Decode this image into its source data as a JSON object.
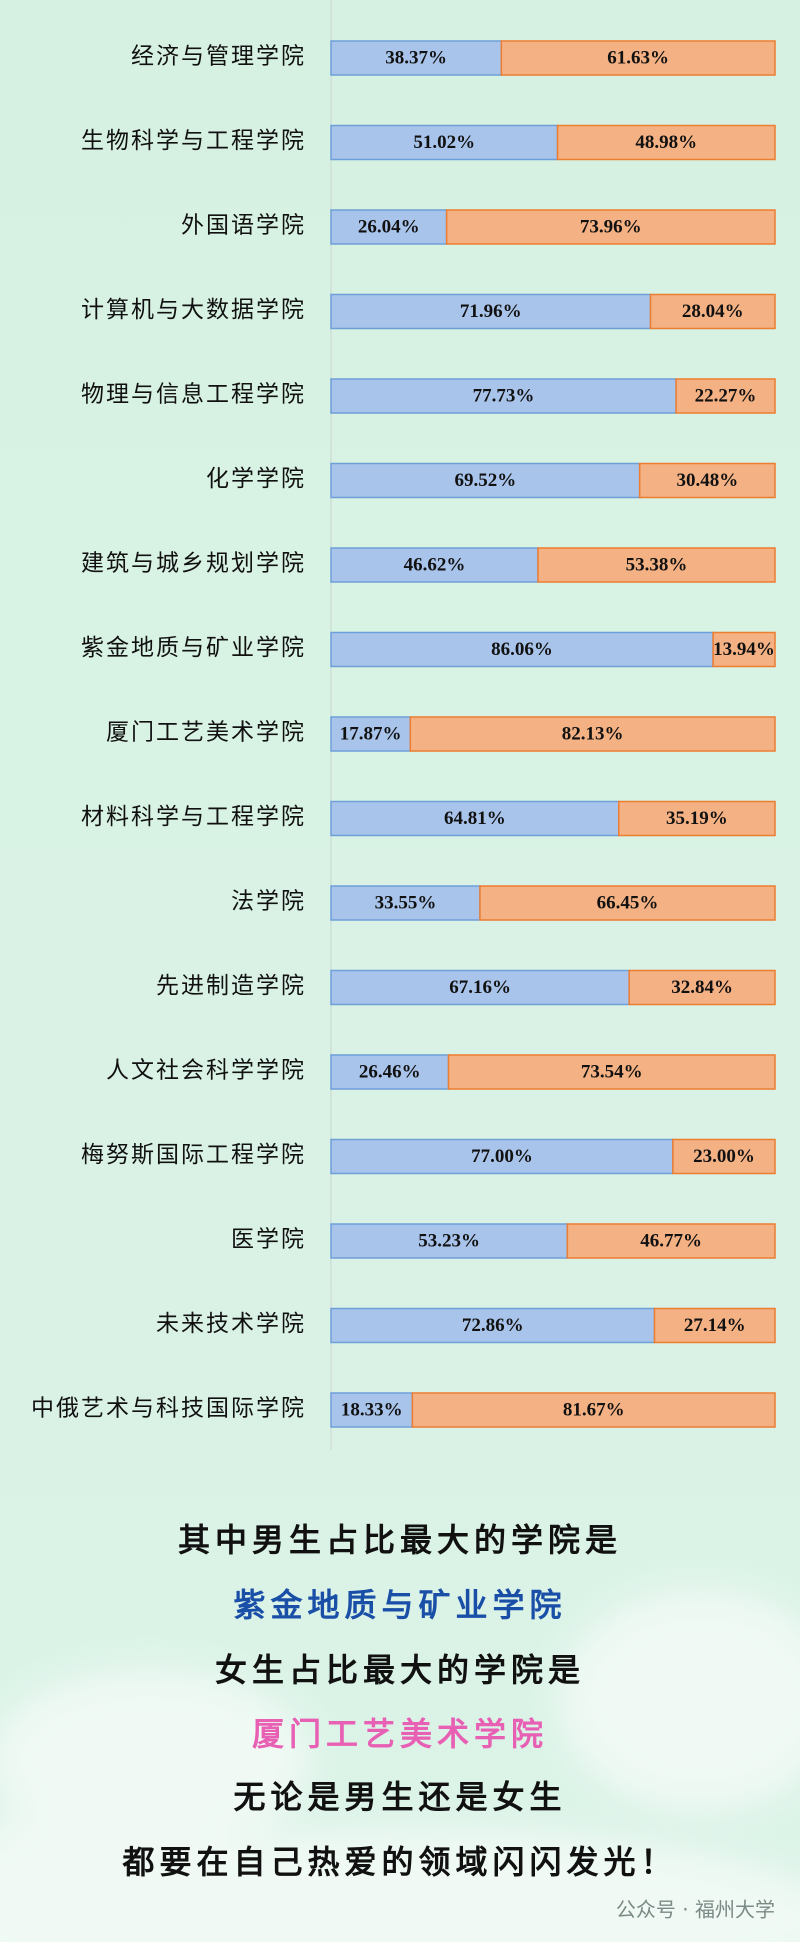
{
  "chart_data": {
    "type": "bar",
    "orientation": "horizontal",
    "stacked": true,
    "categories": [
      "经济与管理学院",
      "生物科学与工程学院",
      "外国语学院",
      "计算机与大数据学院",
      "物理与信息工程学院",
      "化学学院",
      "建筑与城乡规划学院",
      "紫金地质与矿业学院",
      "厦门工艺美术学院",
      "材料科学与工程学院",
      "法学院",
      "先进制造学院",
      "人文社会科学学院",
      "梅努斯国际工程学院",
      "医学院",
      "未来技术学院",
      "中俄艺术与科技国际学院"
    ],
    "series": [
      {
        "color": "#a9c4eb",
        "border": "#6f9fd8",
        "values": [
          38.37,
          51.02,
          26.04,
          71.96,
          77.73,
          69.52,
          46.62,
          86.06,
          17.87,
          64.81,
          33.55,
          67.16,
          26.46,
          77,
          53.23,
          72.86,
          18.33
        ],
        "value_labels": [
          "38.37%",
          "51.02%",
          "26.04%",
          "71.96%",
          "77.73%",
          "69.52%",
          "46.62%",
          "86.06%",
          "17.87%",
          "64.81%",
          "33.55%",
          "67.16%",
          "26.46%",
          "77.00%",
          "53.23%",
          "72.86%",
          "18.33%"
        ]
      },
      {
        "color": "#f4b183",
        "border": "#ed7d31",
        "values": [
          61.63,
          48.98,
          73.96,
          28.04,
          22.27,
          30.48,
          53.38,
          13.94,
          82.13,
          35.19,
          66.45,
          32.84,
          73.54,
          23,
          46.77,
          27.14,
          81.67
        ],
        "value_labels": [
          "61.63%",
          "48.98%",
          "73.96%",
          "28.04%",
          "22.27%",
          "30.48%",
          "53.38%",
          "13.94%",
          "82.13%",
          "35.19%",
          "66.45%",
          "32.84%",
          "73.54%",
          "23.00%",
          "46.77%",
          "27.14%",
          "81.67%"
        ]
      }
    ],
    "xlim": [
      0,
      100
    ],
    "annotations": [
      {
        "text": "其中男生占比最大的学院是",
        "color": "#111111"
      },
      {
        "text": "紫金地质与矿业学院",
        "color": "#1a4fa8"
      },
      {
        "text": "女生占比最大的学院是",
        "color": "#111111"
      },
      {
        "text": "厦门工艺美术学院",
        "color": "#e860b4"
      },
      {
        "text": "无论是男生还是女生",
        "color": "#111111"
      },
      {
        "text": "都要在自己热爱的领域闪闪发光！",
        "color": "#111111"
      }
    ],
    "watermark": "公众号 · 福州大学"
  }
}
